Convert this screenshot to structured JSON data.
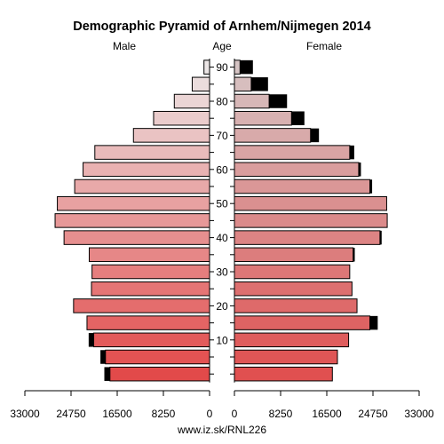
{
  "chart_data": {
    "type": "bar",
    "subtype": "population-pyramid",
    "title": "Demographic Pyramid of Arnhem/Nijmegen 2014",
    "left_label": "Male",
    "center_label": "Age",
    "right_label": "Female",
    "source": "www.iz.sk/RNL226",
    "x_ticks": [
      0,
      8250,
      16500,
      24750,
      33000
    ],
    "x_tick_labels": [
      "0",
      "8250",
      "16500",
      "24750",
      "33000"
    ],
    "xlim": [
      0,
      33000
    ],
    "age_ticks": [
      10,
      20,
      30,
      40,
      50,
      60,
      70,
      80,
      90
    ],
    "age_groups": [
      "0-4",
      "5-9",
      "10-14",
      "15-19",
      "20-24",
      "25-29",
      "30-34",
      "35-39",
      "40-44",
      "45-49",
      "50-54",
      "55-59",
      "60-64",
      "65-69",
      "70-74",
      "75-79",
      "80-84",
      "85-89",
      "90+"
    ],
    "male_main": [
      17800,
      18600,
      20700,
      21900,
      24300,
      21100,
      21000,
      21500,
      26000,
      27600,
      27200,
      24100,
      22600,
      20500,
      13600,
      10000,
      6300,
      3100,
      1000
    ],
    "male_excess": [
      1000,
      900,
      900,
      0,
      0,
      0,
      0,
      0,
      0,
      0,
      0,
      0,
      0,
      0,
      0,
      0,
      0,
      0,
      0
    ],
    "female_main": [
      17500,
      18400,
      20400,
      24200,
      21900,
      21000,
      20600,
      21200,
      26000,
      27300,
      27200,
      24200,
      22200,
      20600,
      13600,
      10200,
      6200,
      3000,
      1000
    ],
    "female_excess": [
      0,
      0,
      0,
      1400,
      0,
      0,
      0,
      300,
      300,
      0,
      0,
      400,
      400,
      800,
      1500,
      2300,
      3200,
      3000,
      2300
    ]
  }
}
